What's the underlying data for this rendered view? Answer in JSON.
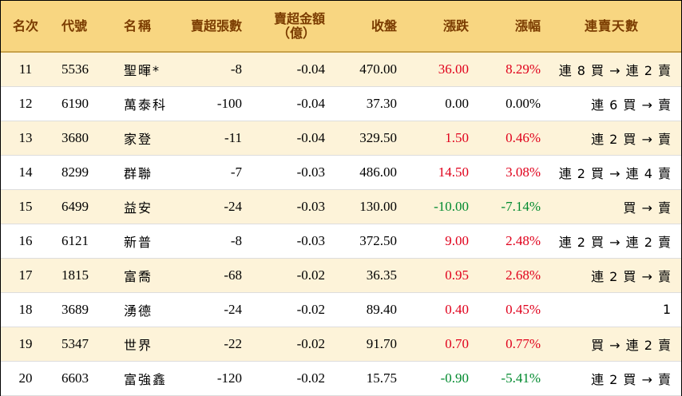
{
  "header": {
    "rank": "名次",
    "code": "代號",
    "name": "名稱",
    "sell_lots": "賣超張數",
    "sell_amount_line1": "賣超金額",
    "sell_amount_line2": "（億）",
    "close": "收盤",
    "change": "漲跌",
    "change_pct": "漲幅",
    "streak": "連賣天數"
  },
  "colors": {
    "up": "#e0001b",
    "down": "#008a2e",
    "header_bg": "#f8d681",
    "header_text": "#7a3b00",
    "odd_row_bg": "#fdf3d9"
  },
  "rows": [
    {
      "rank": "11",
      "code": "5536",
      "name": "聖暉*",
      "sell_lots": "-8",
      "sell_amount": "-0.04",
      "close": "470.00",
      "change": "36.00",
      "change_pct": "8.29%",
      "dir": "up",
      "streak": "連 8 買 → 連 2 賣"
    },
    {
      "rank": "12",
      "code": "6190",
      "name": "萬泰科",
      "sell_lots": "-100",
      "sell_amount": "-0.04",
      "close": "37.30",
      "change": "0.00",
      "change_pct": "0.00%",
      "dir": "flat",
      "streak": "連 6 買 → 賣"
    },
    {
      "rank": "13",
      "code": "3680",
      "name": "家登",
      "sell_lots": "-11",
      "sell_amount": "-0.04",
      "close": "329.50",
      "change": "1.50",
      "change_pct": "0.46%",
      "dir": "up",
      "streak": "連 2 買 → 賣"
    },
    {
      "rank": "14",
      "code": "8299",
      "name": "群聯",
      "sell_lots": "-7",
      "sell_amount": "-0.03",
      "close": "486.00",
      "change": "14.50",
      "change_pct": "3.08%",
      "dir": "up",
      "streak": "連 2 買 → 連 4 賣"
    },
    {
      "rank": "15",
      "code": "6499",
      "name": "益安",
      "sell_lots": "-24",
      "sell_amount": "-0.03",
      "close": "130.00",
      "change": "-10.00",
      "change_pct": "-7.14%",
      "dir": "down",
      "streak": "買 → 賣"
    },
    {
      "rank": "16",
      "code": "6121",
      "name": "新普",
      "sell_lots": "-8",
      "sell_amount": "-0.03",
      "close": "372.50",
      "change": "9.00",
      "change_pct": "2.48%",
      "dir": "up",
      "streak": "連 2 買 → 連 2 賣"
    },
    {
      "rank": "17",
      "code": "1815",
      "name": "富喬",
      "sell_lots": "-68",
      "sell_amount": "-0.02",
      "close": "36.35",
      "change": "0.95",
      "change_pct": "2.68%",
      "dir": "up",
      "streak": "連 2 買 → 賣"
    },
    {
      "rank": "18",
      "code": "3689",
      "name": "湧德",
      "sell_lots": "-24",
      "sell_amount": "-0.02",
      "close": "89.40",
      "change": "0.40",
      "change_pct": "0.45%",
      "dir": "up",
      "streak": "1"
    },
    {
      "rank": "19",
      "code": "5347",
      "name": "世界",
      "sell_lots": "-22",
      "sell_amount": "-0.02",
      "close": "91.70",
      "change": "0.70",
      "change_pct": "0.77%",
      "dir": "up",
      "streak": "買 → 連 2 賣"
    },
    {
      "rank": "20",
      "code": "6603",
      "name": "富強鑫",
      "sell_lots": "-120",
      "sell_amount": "-0.02",
      "close": "15.75",
      "change": "-0.90",
      "change_pct": "-5.41%",
      "dir": "down",
      "streak": "連 2 買 → 賣"
    }
  ]
}
